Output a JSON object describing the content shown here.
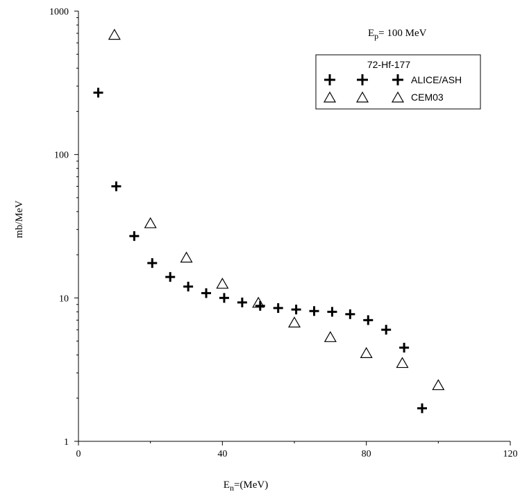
{
  "chart_data": {
    "type": "scatter",
    "xlabel": {
      "main": "E",
      "sub": "n",
      "rest": "=(MeV)"
    },
    "ylabel": "mb/MeV",
    "xlim": [
      0,
      120
    ],
    "ylim": [
      1,
      1000
    ],
    "yscale": "log",
    "xticks": [
      0,
      40,
      80,
      120
    ],
    "yticks": [
      1,
      10,
      100,
      1000
    ],
    "xtick_labels": [
      "0",
      "40",
      "80",
      "120"
    ],
    "ytick_labels": [
      "1",
      "10",
      "100",
      "1000"
    ],
    "grid": false,
    "annotation": {
      "main": "E",
      "sub": "p",
      "rest": "= 100 MeV"
    },
    "legend": {
      "title": "72-Hf-177",
      "placement": "top-right",
      "entries": [
        {
          "label": "ALICE/ASH",
          "marker": "plus"
        },
        {
          "label": "CEM03",
          "marker": "triangle"
        }
      ]
    },
    "series": [
      {
        "name": "ALICE/ASH",
        "marker": "plus",
        "color": "#000000",
        "points": [
          [
            5.5,
            270
          ],
          [
            10.5,
            60
          ],
          [
            15.5,
            27
          ],
          [
            20.5,
            17.5
          ],
          [
            25.5,
            14
          ],
          [
            30.5,
            12
          ],
          [
            35.5,
            10.8
          ],
          [
            40.5,
            10
          ],
          [
            45.5,
            9.3
          ],
          [
            50.5,
            8.8
          ],
          [
            55.5,
            8.5
          ],
          [
            60.5,
            8.3
          ],
          [
            65.5,
            8.1
          ],
          [
            70.5,
            8.0
          ],
          [
            75.5,
            7.7
          ],
          [
            80.5,
            7.0
          ],
          [
            85.5,
            6.0
          ],
          [
            90.5,
            4.5
          ],
          [
            95.5,
            1.7
          ]
        ]
      },
      {
        "name": "CEM03",
        "marker": "triangle",
        "color": "#000000",
        "points": [
          [
            10,
            680
          ],
          [
            20,
            33
          ],
          [
            30,
            19
          ],
          [
            40,
            12.5
          ],
          [
            50,
            9.2
          ],
          [
            60,
            6.7
          ],
          [
            70,
            5.3
          ],
          [
            80,
            4.1
          ],
          [
            90,
            3.5
          ],
          [
            100,
            2.45
          ]
        ]
      }
    ]
  }
}
